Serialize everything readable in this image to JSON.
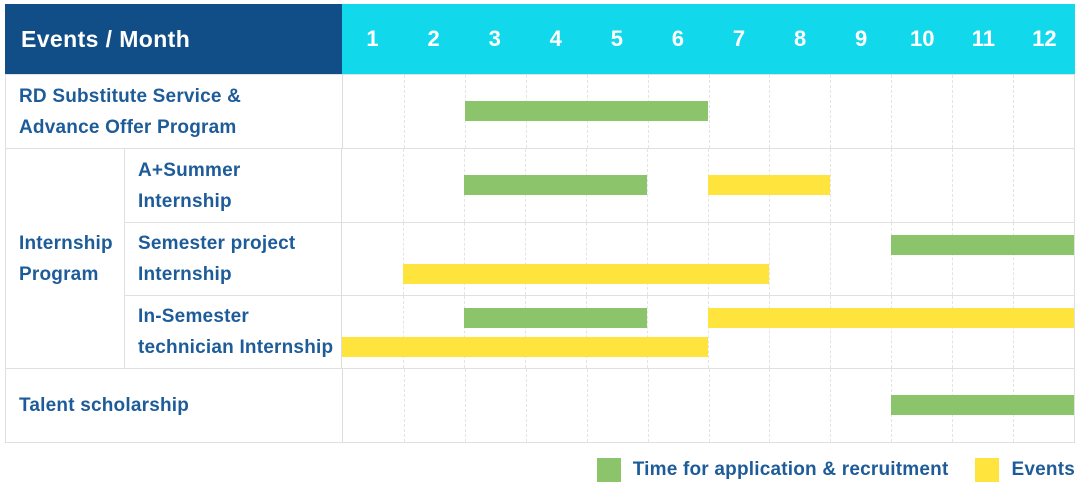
{
  "header": {
    "title": "Events / Month"
  },
  "colors": {
    "header_bg": "#114e87",
    "months_bg": "#12d8ec",
    "label_text": "#1e5c99",
    "recruitment": "#8bc46a",
    "events": "#ffe43d"
  },
  "chart_data": {
    "type": "bar",
    "variant": "gantt-schedule-table",
    "title": "Events / Month",
    "months": [
      "1",
      "2",
      "3",
      "4",
      "5",
      "6",
      "7",
      "8",
      "9",
      "10",
      "11",
      "12"
    ],
    "x_range": [
      1,
      12
    ],
    "grid": "dashed-vertical-month-lines",
    "legend_position": "bottom-right",
    "legend": [
      {
        "kind": "recruitment",
        "label": "Time for application & recruitment",
        "color": "#8bc46a"
      },
      {
        "kind": "events",
        "label": "Events",
        "color": "#ffe43d"
      }
    ],
    "groups": [
      {
        "group_lines": null,
        "rows": [
          {
            "label": "RD Substitute Service & Advance Offer Program",
            "label_lines": [
              "RD Substitute Service &",
              "Advance Offer Program"
            ],
            "lanes": [
              [
                {
                  "kind": "recruitment",
                  "start_month": 3,
                  "end_month": 6
                }
              ]
            ]
          }
        ]
      },
      {
        "group_label": "Internship Program",
        "group_lines": [
          "Internship",
          "Program"
        ],
        "rows": [
          {
            "label": "A+Summer Internship",
            "label_lines": [
              "A+Summer",
              "Internship"
            ],
            "lanes": [
              [
                {
                  "kind": "recruitment",
                  "start_month": 3,
                  "end_month": 5
                },
                {
                  "kind": "events",
                  "start_month": 7,
                  "end_month": 8
                }
              ]
            ]
          },
          {
            "label": "Semester project Internship",
            "label_lines": [
              "Semester project",
              "Internship"
            ],
            "lanes": [
              [
                {
                  "kind": "recruitment",
                  "start_month": 10,
                  "end_month": 12
                }
              ],
              [
                {
                  "kind": "events",
                  "start_month": 2,
                  "end_month": 7
                }
              ]
            ]
          },
          {
            "label": "In-Semester technician Internship",
            "label_lines": [
              "In-Semester",
              "technician Internship"
            ],
            "lanes": [
              [
                {
                  "kind": "recruitment",
                  "start_month": 3,
                  "end_month": 5
                },
                {
                  "kind": "events",
                  "start_month": 7,
                  "end_month": 12
                }
              ],
              [
                {
                  "kind": "events",
                  "start_month": 1,
                  "end_month": 6
                }
              ]
            ]
          }
        ]
      },
      {
        "group_lines": null,
        "rows": [
          {
            "label": "Talent scholarship",
            "label_lines": [
              "Talent scholarship"
            ],
            "lanes": [
              [
                {
                  "kind": "recruitment",
                  "start_month": 10,
                  "end_month": 12
                }
              ]
            ]
          }
        ]
      }
    ]
  }
}
